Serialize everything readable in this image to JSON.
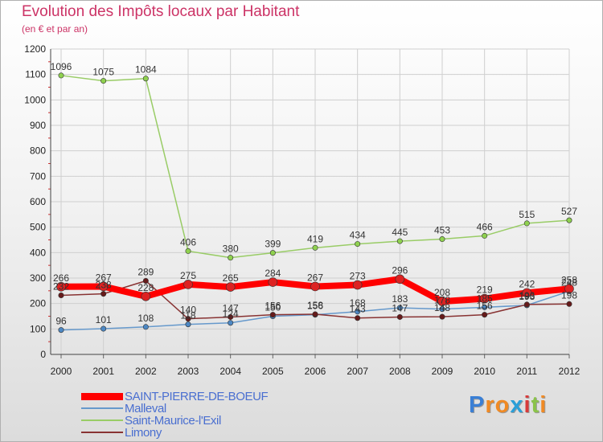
{
  "chart_data": {
    "type": "line",
    "title": "Evolution des Impôts locaux par Habitant",
    "subtitle": "(en € et par an)",
    "xlabel": "",
    "ylabel": "",
    "categories": [
      "2000",
      "2001",
      "2002",
      "2003",
      "2004",
      "2005",
      "2006",
      "2007",
      "2008",
      "2009",
      "2010",
      "2011",
      "2012"
    ],
    "ylim": [
      0,
      1200
    ],
    "yticks": [
      0,
      100,
      200,
      300,
      400,
      500,
      600,
      700,
      800,
      900,
      1000,
      1100,
      1200
    ],
    "grid": true,
    "legend_position": "bottom-left",
    "series": [
      {
        "name": "SAINT-PIERRE-DE-BOEUF",
        "color": "#ff0000",
        "marker": "#dd2222",
        "values": [
          266,
          267,
          228,
          275,
          265,
          284,
          267,
          273,
          296,
          208,
          219,
          242,
          258
        ]
      },
      {
        "name": "Malleval",
        "color": "#6699cc",
        "marker": "#4d88c4",
        "values": [
          96,
          101,
          108,
          118,
          124,
          150,
          156,
          168,
          183,
          178,
          185,
          193,
          248
        ]
      },
      {
        "name": "Saint-Maurice-l'Exil",
        "color": "#99cc66",
        "marker": "#8fd14f",
        "values": [
          1096,
          1075,
          1084,
          406,
          380,
          399,
          419,
          434,
          445,
          453,
          466,
          515,
          527
        ]
      },
      {
        "name": "Limony",
        "color": "#883333",
        "marker": "#661a1a",
        "values": [
          232,
          238,
          289,
          140,
          147,
          156,
          158,
          143,
          147,
          148,
          156,
          196,
          198
        ]
      }
    ]
  },
  "logo": {
    "letters": [
      "P",
      "r",
      "o",
      "x",
      "i",
      "t",
      "i"
    ],
    "colors": [
      "#3a7fd5",
      "#f08a24",
      "#f08a24",
      "#2a9fd8",
      "#d83a3a",
      "#8bc34a",
      "#f08a24"
    ]
  }
}
